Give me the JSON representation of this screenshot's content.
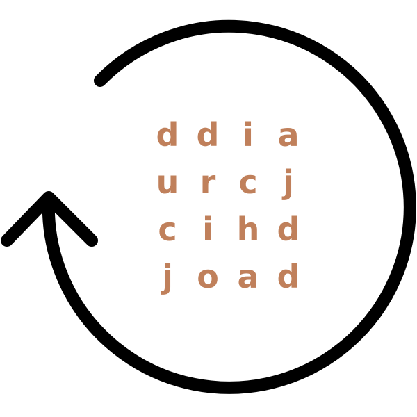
{
  "colors": {
    "letter": "#c0805b",
    "arrow": "#000000",
    "background": "#ffffff"
  },
  "icon": "rotate-arrow-icon",
  "grid": {
    "rows": [
      [
        "d",
        "d",
        "i",
        "a"
      ],
      [
        "u",
        "r",
        "c",
        "j"
      ],
      [
        "c",
        "i",
        "h",
        "d"
      ],
      [
        "j",
        "o",
        "a",
        "d"
      ]
    ]
  }
}
